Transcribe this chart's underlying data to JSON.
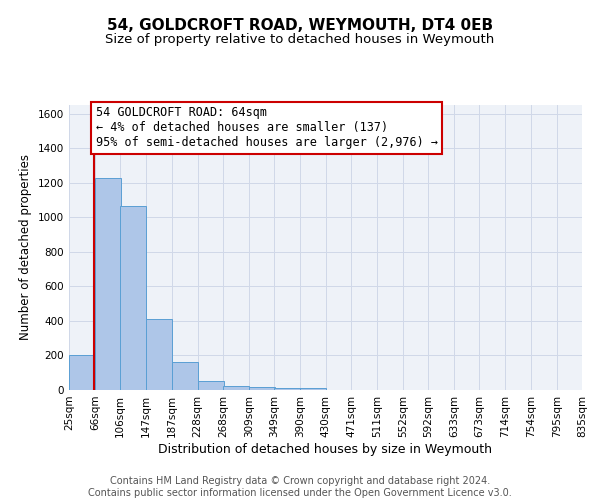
{
  "title": "54, GOLDCROFT ROAD, WEYMOUTH, DT4 0EB",
  "subtitle": "Size of property relative to detached houses in Weymouth",
  "xlabel": "Distribution of detached houses by size in Weymouth",
  "ylabel": "Number of detached properties",
  "bin_labels": [
    "25sqm",
    "66sqm",
    "106sqm",
    "147sqm",
    "187sqm",
    "228sqm",
    "268sqm",
    "309sqm",
    "349sqm",
    "390sqm",
    "430sqm",
    "471sqm",
    "511sqm",
    "552sqm",
    "592sqm",
    "633sqm",
    "673sqm",
    "714sqm",
    "754sqm",
    "795sqm",
    "835sqm"
  ],
  "bin_edges": [
    25,
    66,
    106,
    147,
    187,
    228,
    268,
    309,
    349,
    390,
    430,
    471,
    511,
    552,
    592,
    633,
    673,
    714,
    754,
    795,
    835
  ],
  "bar_heights": [
    200,
    1225,
    1065,
    410,
    160,
    55,
    25,
    15,
    10,
    10,
    0,
    0,
    0,
    0,
    0,
    0,
    0,
    0,
    0,
    0
  ],
  "bar_color": "#aec6e8",
  "bar_edge_color": "#5a9fd4",
  "property_line_x": 64,
  "property_line_color": "#cc0000",
  "annotation_text": "54 GOLDCROFT ROAD: 64sqm\n← 4% of detached houses are smaller (137)\n95% of semi-detached houses are larger (2,976) →",
  "annotation_box_color": "#cc0000",
  "ylim": [
    0,
    1650
  ],
  "yticks": [
    0,
    200,
    400,
    600,
    800,
    1000,
    1200,
    1400,
    1600
  ],
  "grid_color": "#d0d8e8",
  "background_color": "#eef2f8",
  "footer_text": "Contains HM Land Registry data © Crown copyright and database right 2024.\nContains public sector information licensed under the Open Government Licence v3.0.",
  "title_fontsize": 11,
  "subtitle_fontsize": 9.5,
  "xlabel_fontsize": 9,
  "ylabel_fontsize": 8.5,
  "tick_fontsize": 7.5,
  "annotation_fontsize": 8.5,
  "footer_fontsize": 7
}
